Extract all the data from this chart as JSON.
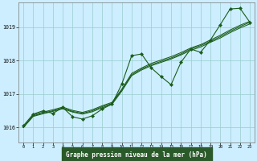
{
  "title": "Graphe pression niveau de la mer (hPa)",
  "bg_color": "#cceeff",
  "plot_bg": "#cceeff",
  "grid_color": "#99cccc",
  "line_color": "#1a5c1a",
  "xlabel_bg": "#2a5a2a",
  "xlabel_fg": "#ffffff",
  "xlim": [
    -0.5,
    23.5
  ],
  "ylim": [
    1015.55,
    1019.75
  ],
  "yticks": [
    1016,
    1017,
    1018,
    1019
  ],
  "xticks": [
    0,
    1,
    2,
    3,
    4,
    5,
    6,
    7,
    8,
    9,
    10,
    11,
    12,
    13,
    14,
    15,
    16,
    17,
    18,
    19,
    20,
    21,
    22,
    23
  ],
  "hours": [
    0,
    1,
    2,
    3,
    4,
    5,
    6,
    7,
    8,
    9,
    10,
    11,
    12,
    13,
    14,
    15,
    16,
    17,
    18,
    19,
    20,
    21,
    22,
    23
  ],
  "main_line": [
    1016.05,
    1016.4,
    1016.5,
    1016.42,
    1016.6,
    1016.32,
    1016.25,
    1016.35,
    1016.55,
    1016.7,
    1017.3,
    1018.15,
    1018.2,
    1017.78,
    1017.52,
    1017.28,
    1017.95,
    1018.35,
    1018.25,
    1018.62,
    1019.08,
    1019.55,
    1019.57,
    1019.15
  ],
  "band_line1": [
    1016.0,
    1016.35,
    1016.43,
    1016.5,
    1016.58,
    1016.48,
    1016.42,
    1016.5,
    1016.62,
    1016.72,
    1017.12,
    1017.58,
    1017.75,
    1017.88,
    1017.98,
    1018.08,
    1018.2,
    1018.35,
    1018.45,
    1018.58,
    1018.72,
    1018.88,
    1019.02,
    1019.15
  ],
  "band_line2": [
    1016.0,
    1016.38,
    1016.46,
    1016.53,
    1016.61,
    1016.51,
    1016.45,
    1016.53,
    1016.65,
    1016.75,
    1017.15,
    1017.62,
    1017.78,
    1017.92,
    1018.02,
    1018.12,
    1018.24,
    1018.38,
    1018.48,
    1018.62,
    1018.76,
    1018.92,
    1019.06,
    1019.18
  ],
  "band_line3": [
    1016.0,
    1016.33,
    1016.41,
    1016.48,
    1016.56,
    1016.46,
    1016.4,
    1016.47,
    1016.59,
    1016.69,
    1017.09,
    1017.55,
    1017.72,
    1017.85,
    1017.95,
    1018.05,
    1018.17,
    1018.31,
    1018.41,
    1018.55,
    1018.68,
    1018.84,
    1018.98,
    1019.1
  ]
}
